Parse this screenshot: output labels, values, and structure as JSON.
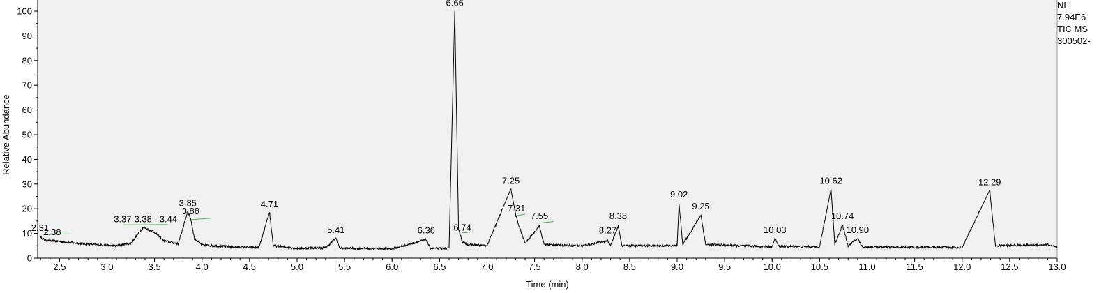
{
  "chart_data": {
    "type": "line",
    "xlabel": "Time (min)",
    "ylabel": "Relative Abundance",
    "xlim": [
      2.27,
      13.0
    ],
    "ylim": [
      0,
      100
    ],
    "x_ticks": [
      "2.5",
      "3.0",
      "3.5",
      "4.0",
      "4.5",
      "5.0",
      "5.5",
      "6.0",
      "6.5",
      "7.0",
      "7.5",
      "8.0",
      "8.5",
      "9.0",
      "9.5",
      "10.0",
      "10.5",
      "11.0",
      "11.5",
      "12.0",
      "12.5",
      "13.0"
    ],
    "y_ticks": [
      "0",
      "10",
      "20",
      "30",
      "40",
      "50",
      "60",
      "70",
      "80",
      "90",
      "100"
    ],
    "baseline_points": [
      [
        2.3,
        8.5
      ],
      [
        2.35,
        7.2
      ],
      [
        2.5,
        6.8
      ],
      [
        2.7,
        6.0
      ],
      [
        2.9,
        5.4
      ],
      [
        3.1,
        5.0
      ],
      [
        3.25,
        6.0
      ],
      [
        3.38,
        12.5
      ],
      [
        3.5,
        10.5
      ],
      [
        3.6,
        7.0
      ],
      [
        3.75,
        5.8
      ],
      [
        3.85,
        19.0
      ],
      [
        3.88,
        16.0
      ],
      [
        3.92,
        8.0
      ],
      [
        4.0,
        5.3
      ],
      [
        4.3,
        4.6
      ],
      [
        4.6,
        4.3
      ],
      [
        4.71,
        18.5
      ],
      [
        4.75,
        5.0
      ],
      [
        5.0,
        4.0
      ],
      [
        5.3,
        4.2
      ],
      [
        5.41,
        8.0
      ],
      [
        5.45,
        4.0
      ],
      [
        6.0,
        3.8
      ],
      [
        6.36,
        7.5
      ],
      [
        6.4,
        4.0
      ],
      [
        6.6,
        3.8
      ],
      [
        6.66,
        100.0
      ],
      [
        6.7,
        12.0
      ],
      [
        6.74,
        6.5
      ],
      [
        6.8,
        5.5
      ],
      [
        7.0,
        5.0
      ],
      [
        7.25,
        28.0
      ],
      [
        7.31,
        16.0
      ],
      [
        7.4,
        6.0
      ],
      [
        7.55,
        13.0
      ],
      [
        7.6,
        5.5
      ],
      [
        8.0,
        5.0
      ],
      [
        8.27,
        7.0
      ],
      [
        8.3,
        5.0
      ],
      [
        8.38,
        13.0
      ],
      [
        8.42,
        5.0
      ],
      [
        9.0,
        5.0
      ],
      [
        9.02,
        22.0
      ],
      [
        9.06,
        5.5
      ],
      [
        9.25,
        17.5
      ],
      [
        9.3,
        5.5
      ],
      [
        10.0,
        4.6
      ],
      [
        10.03,
        8.0
      ],
      [
        10.07,
        4.8
      ],
      [
        10.5,
        4.6
      ],
      [
        10.62,
        28.0
      ],
      [
        10.66,
        5.5
      ],
      [
        10.74,
        13.5
      ],
      [
        10.8,
        5.0
      ],
      [
        10.9,
        8.0
      ],
      [
        10.95,
        4.5
      ],
      [
        11.5,
        4.4
      ],
      [
        12.0,
        4.3
      ],
      [
        12.29,
        27.5
      ],
      [
        12.35,
        5.0
      ],
      [
        12.9,
        5.5
      ],
      [
        13.0,
        4.2
      ]
    ],
    "peaks": [
      {
        "label": "2.31",
        "x": 2.31,
        "y": 10.5
      },
      {
        "label": "2.38",
        "x": 2.38,
        "y": 8.8
      },
      {
        "label": "3.37",
        "x": 3.37,
        "y": 14.0
      },
      {
        "label": "3.38",
        "x": 3.38,
        "y": 14.0
      },
      {
        "label": "3.44",
        "x": 3.44,
        "y": 14.0
      },
      {
        "label": "3.85",
        "x": 3.85,
        "y": 20.5
      },
      {
        "label": "3.88",
        "x": 3.88,
        "y": 17.2
      },
      {
        "label": "4.71",
        "x": 4.71,
        "y": 20.0
      },
      {
        "label": "5.41",
        "x": 5.41,
        "y": 9.6
      },
      {
        "label": "6.36",
        "x": 6.36,
        "y": 9.4
      },
      {
        "label": "6.66",
        "x": 6.66,
        "y": 101.5
      },
      {
        "label": "6.74",
        "x": 6.74,
        "y": 10.6
      },
      {
        "label": "7.25",
        "x": 7.25,
        "y": 29.5
      },
      {
        "label": "7.31",
        "x": 7.31,
        "y": 18.4
      },
      {
        "label": "7.55",
        "x": 7.55,
        "y": 15.2
      },
      {
        "label": "8.27",
        "x": 8.27,
        "y": 9.4
      },
      {
        "label": "8.38",
        "x": 8.38,
        "y": 15.2
      },
      {
        "label": "9.02",
        "x": 9.02,
        "y": 24.0
      },
      {
        "label": "9.25",
        "x": 9.25,
        "y": 19.2
      },
      {
        "label": "10.03",
        "x": 10.03,
        "y": 9.6
      },
      {
        "label": "10.62",
        "x": 10.62,
        "y": 29.5
      },
      {
        "label": "10.74",
        "x": 10.74,
        "y": 15.2
      },
      {
        "label": "10.90",
        "x": 10.9,
        "y": 9.6
      },
      {
        "label": "12.29",
        "x": 12.29,
        "y": 29.0
      }
    ],
    "integration_marks_color": "#4caf50",
    "trace_color": "#000000",
    "plot_background": "#f0f0f0"
  },
  "info": {
    "nl_label": "NL:",
    "nl_value": "7.94E6",
    "scan_filter": "TIC  MS",
    "file_name": "300502-"
  }
}
